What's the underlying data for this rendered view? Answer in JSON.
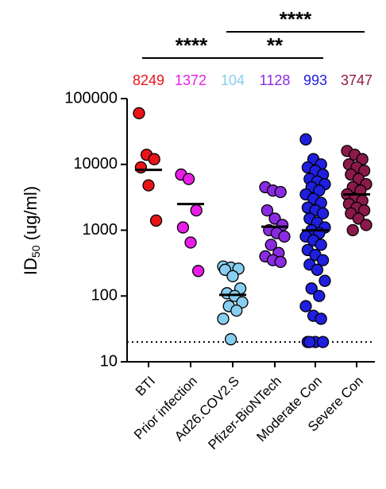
{
  "chart_data": {
    "type": "scatter",
    "ylabel": [
      "ID",
      "50",
      " (ug/ml)"
    ],
    "categories": [
      "BTI",
      "Prior infection",
      "Ad26.COV2.S",
      "Pfizer-BioNTech",
      "Moderate Con",
      "Severe Con"
    ],
    "series": [
      {
        "name": "BTI",
        "color": "#e8141a",
        "stat": 8249,
        "line": 8249,
        "values": [
          60000,
          14000,
          12000,
          9000,
          4800,
          1400
        ]
      },
      {
        "name": "Prior infection",
        "color": "#e81ee8",
        "stat": 1372,
        "line": 2500,
        "values": [
          7000,
          6000,
          2000,
          1100,
          650,
          240
        ]
      },
      {
        "name": "Ad26.COV2.S",
        "color": "#87cef0",
        "stat": 104,
        "line": 104,
        "values": [
          280,
          270,
          260,
          250,
          200,
          130,
          110,
          100,
          80,
          70,
          60,
          45,
          22
        ]
      },
      {
        "name": "Pfizer-BioNTech",
        "color": "#8a2be2",
        "stat": 1128,
        "line": 1128,
        "values": [
          4500,
          4000,
          3800,
          2000,
          1500,
          1200,
          1000,
          900,
          800,
          600,
          450,
          400,
          350,
          330
        ]
      },
      {
        "name": "Moderate Con",
        "color": "#1f1fe0",
        "stat": 993,
        "line": 993,
        "values": [
          24000,
          12000,
          10000,
          9000,
          8000,
          7000,
          6000,
          5500,
          5000,
          4500,
          4000,
          3500,
          3000,
          2600,
          2200,
          2000,
          1800,
          1500,
          1300,
          1100,
          1000,
          900,
          800,
          700,
          600,
          500,
          420,
          350,
          300,
          250,
          170,
          130,
          100,
          70,
          50,
          45,
          20,
          20,
          20,
          20
        ]
      },
      {
        "name": "Severe Con",
        "color": "#8b1a4a",
        "stat": 3747,
        "line": 3500,
        "values": [
          16000,
          14000,
          12000,
          10000,
          9000,
          8000,
          7000,
          6000,
          5000,
          4500,
          4000,
          3500,
          3000,
          2800,
          2500,
          2200,
          2000,
          1800,
          1500,
          1200,
          1000
        ]
      }
    ],
    "ylim": [
      10,
      100000
    ],
    "yticks": [
      10,
      100,
      1000,
      10000,
      100000
    ],
    "log_y": true,
    "ref_line": 20,
    "comparisons": [
      {
        "from": "BTI",
        "to": "Ad26.COV2.S",
        "label": "****"
      },
      {
        "from": "Ad26.COV2.S",
        "to": "Moderate Con",
        "label": "**"
      },
      {
        "from": "Ad26.COV2.S",
        "to": "Severe Con",
        "label": "****"
      }
    ]
  }
}
